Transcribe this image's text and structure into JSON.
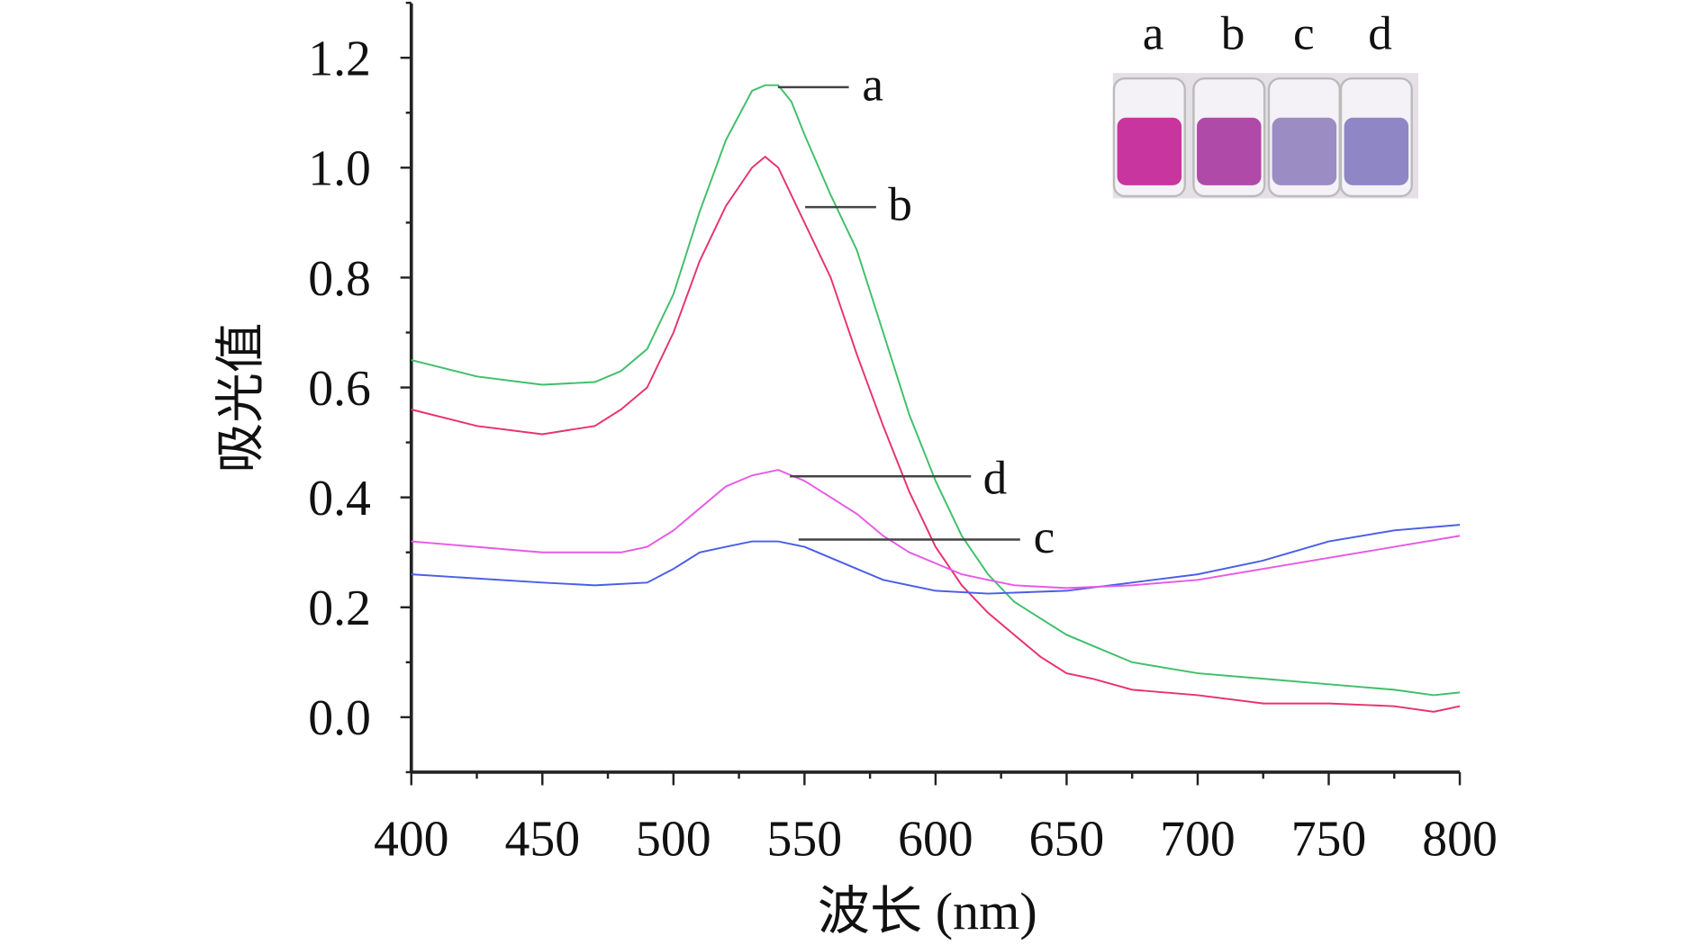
{
  "chart_data": {
    "type": "line",
    "title": "",
    "xlabel": "波长 (nm)",
    "ylabel": "吸光值",
    "xlim": [
      400,
      800
    ],
    "ylim": [
      -0.1,
      1.3
    ],
    "xticks": [
      "400",
      "450",
      "500",
      "550",
      "600",
      "650",
      "700",
      "750",
      "800"
    ],
    "yticks": [
      "0.0",
      "0.2",
      "0.4",
      "0.6",
      "0.8",
      "1.0",
      "1.2"
    ],
    "grid": false,
    "inset": {
      "description_labels": [
        "a",
        "b",
        "c",
        "d"
      ],
      "vial_colors": [
        "#c8359e",
        "#b04aa8",
        "#9c8cc4",
        "#8f86c6"
      ]
    },
    "series": [
      {
        "name": "a",
        "color": "#3fbf6a",
        "x": [
          400,
          425,
          450,
          470,
          480,
          490,
          500,
          510,
          520,
          530,
          535,
          540,
          545,
          550,
          560,
          570,
          580,
          590,
          600,
          610,
          620,
          630,
          640,
          650,
          660,
          675,
          700,
          725,
          750,
          775,
          790,
          800
        ],
        "y": [
          0.65,
          0.62,
          0.605,
          0.61,
          0.63,
          0.67,
          0.77,
          0.92,
          1.05,
          1.14,
          1.15,
          1.15,
          1.12,
          1.06,
          0.95,
          0.85,
          0.7,
          0.55,
          0.43,
          0.33,
          0.26,
          0.21,
          0.18,
          0.15,
          0.13,
          0.1,
          0.08,
          0.07,
          0.06,
          0.05,
          0.04,
          0.045
        ]
      },
      {
        "name": "b",
        "color": "#e6336f",
        "x": [
          400,
          425,
          450,
          470,
          480,
          490,
          500,
          510,
          520,
          530,
          535,
          540,
          550,
          560,
          570,
          580,
          590,
          600,
          610,
          620,
          630,
          640,
          650,
          660,
          675,
          700,
          725,
          750,
          775,
          790,
          800
        ],
        "y": [
          0.56,
          0.53,
          0.515,
          0.53,
          0.56,
          0.6,
          0.7,
          0.83,
          0.93,
          1.0,
          1.02,
          1.0,
          0.9,
          0.8,
          0.66,
          0.53,
          0.41,
          0.31,
          0.24,
          0.19,
          0.15,
          0.11,
          0.08,
          0.07,
          0.05,
          0.04,
          0.025,
          0.025,
          0.02,
          0.01,
          0.02
        ]
      },
      {
        "name": "c",
        "color": "#4a5ee8",
        "x": [
          400,
          450,
          470,
          490,
          500,
          510,
          520,
          530,
          540,
          550,
          560,
          570,
          580,
          600,
          620,
          650,
          675,
          700,
          725,
          750,
          775,
          800
        ],
        "y": [
          0.26,
          0.245,
          0.24,
          0.245,
          0.27,
          0.3,
          0.31,
          0.32,
          0.32,
          0.31,
          0.29,
          0.27,
          0.25,
          0.23,
          0.225,
          0.23,
          0.245,
          0.26,
          0.285,
          0.32,
          0.34,
          0.35
        ]
      },
      {
        "name": "d",
        "color": "#e65ae6",
        "x": [
          400,
          450,
          480,
          490,
          500,
          510,
          520,
          530,
          540,
          550,
          560,
          570,
          580,
          590,
          600,
          610,
          620,
          630,
          650,
          675,
          700,
          725,
          750,
          775,
          800
        ],
        "y": [
          0.32,
          0.3,
          0.3,
          0.31,
          0.34,
          0.38,
          0.42,
          0.44,
          0.45,
          0.43,
          0.4,
          0.37,
          0.33,
          0.3,
          0.28,
          0.26,
          0.25,
          0.24,
          0.235,
          0.24,
          0.25,
          0.27,
          0.29,
          0.31,
          0.33
        ]
      }
    ]
  }
}
